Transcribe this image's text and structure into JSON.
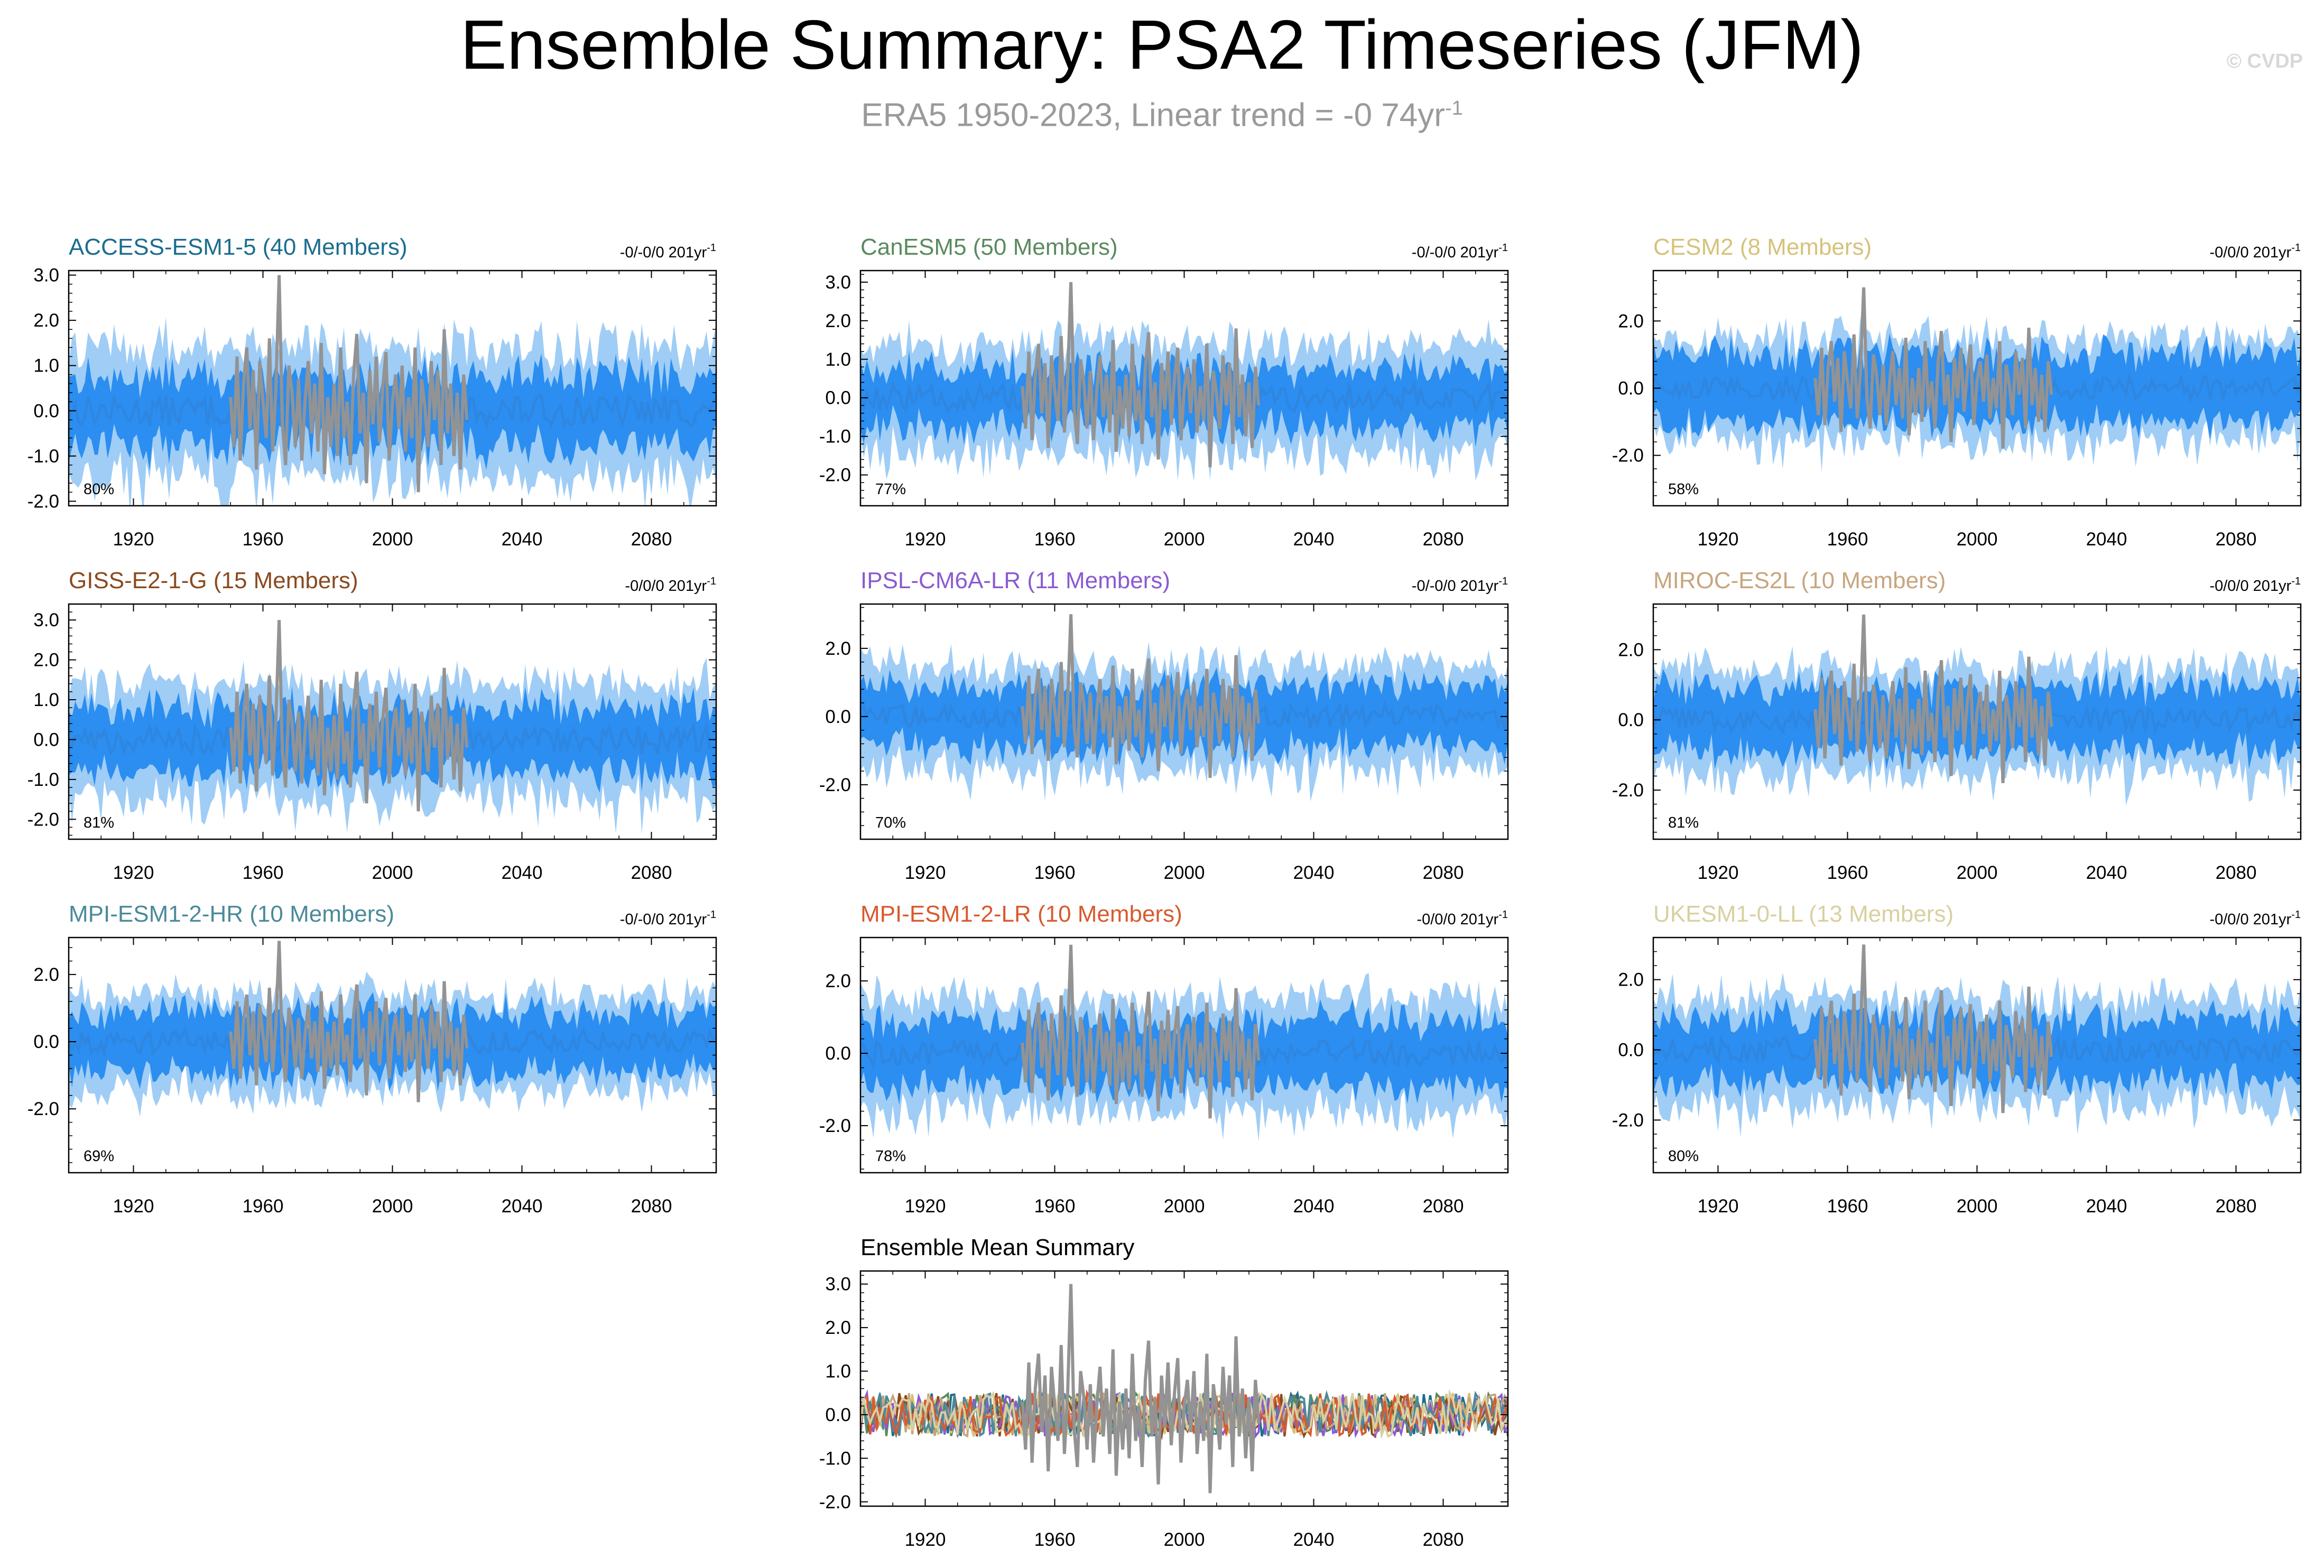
{
  "title": "Ensemble Summary: PSA2 Timeseries (JFM)",
  "subtitle_main": "ERA5 1950-2023, Linear trend = -0 74yr",
  "subtitle_sup": "-1",
  "watermark": "© CVDP",
  "colors": {
    "band_outer": "#9fcdf6",
    "band_inner": "#2b8ef0",
    "median": "#2f86e0",
    "obs": "#939393"
  },
  "chart_data": [
    {
      "type": "area",
      "model": "ACCESS-ESM1-5",
      "members_label": "ACCESS-ESM1-5 (40 Members)",
      "title_color": "#1b6d8e",
      "trend_prefix": "-0/-0/0 201yr",
      "trend_sup": "-1",
      "percent": "80%",
      "ylim": [
        -2.1,
        3.1
      ],
      "yticks": [
        -2,
        -1,
        0,
        1,
        2,
        3
      ],
      "ytick_labels": [
        "-2.0",
        "-1.0",
        "0.0",
        "1.0",
        "2.0",
        "3.0"
      ],
      "xlim": [
        1900,
        2100
      ],
      "xticks": [
        1920,
        1960,
        2000,
        2040,
        2080
      ],
      "outer_halfwidth": 1.4,
      "inner_halfwidth": 0.75
    },
    {
      "type": "area",
      "model": "CanESM5",
      "members_label": "CanESM5 (50 Members)",
      "title_color": "#5a8a5e",
      "trend_prefix": "-0/-0/0 201yr",
      "trend_sup": "-1",
      "percent": "77%",
      "ylim": [
        -2.8,
        3.3
      ],
      "yticks": [
        -2,
        -1,
        0,
        1,
        2,
        3
      ],
      "ytick_labels": [
        "-2.0",
        "-1.0",
        "0.0",
        "1.0",
        "2.0",
        "3.0"
      ],
      "xlim": [
        1900,
        2100
      ],
      "xticks": [
        1920,
        1960,
        2000,
        2040,
        2080
      ],
      "outer_halfwidth": 1.4,
      "inner_halfwidth": 0.75
    },
    {
      "type": "area",
      "model": "CESM2",
      "members_label": "CESM2 (8 Members)",
      "title_color": "#d6c27a",
      "trend_prefix": "-0/0/0 201yr",
      "trend_sup": "-1",
      "percent": "58%",
      "ylim": [
        -3.5,
        3.5
      ],
      "yticks": [
        -2,
        0,
        2
      ],
      "ytick_labels": [
        "-2.0",
        "0.0",
        "2.0"
      ],
      "xlim": [
        1900,
        2100
      ],
      "xticks": [
        1920,
        1960,
        2000,
        2040,
        2080
      ],
      "outer_halfwidth": 1.5,
      "inner_halfwidth": 1.0
    },
    {
      "type": "area",
      "model": "GISS-E2-1-G",
      "members_label": "GISS-E2-1-G (15 Members)",
      "title_color": "#8a4a1e",
      "trend_prefix": "-0/0/0 201yr",
      "trend_sup": "-1",
      "percent": "81%",
      "ylim": [
        -2.5,
        3.4
      ],
      "yticks": [
        -2,
        -1,
        0,
        1,
        2,
        3
      ],
      "ytick_labels": [
        "-2.0",
        "-1.0",
        "0.0",
        "1.0",
        "2.0",
        "3.0"
      ],
      "xlim": [
        1900,
        2100
      ],
      "xticks": [
        1920,
        1960,
        2000,
        2040,
        2080
      ],
      "outer_halfwidth": 1.4,
      "inner_halfwidth": 0.8
    },
    {
      "type": "area",
      "model": "IPSL-CM6A-LR",
      "members_label": "IPSL-CM6A-LR (11 Members)",
      "title_color": "#8a5ad0",
      "trend_prefix": "-0/-0/0 201yr",
      "trend_sup": "-1",
      "percent": "70%",
      "ylim": [
        -3.6,
        3.3
      ],
      "yticks": [
        -2,
        0,
        2
      ],
      "ytick_labels": [
        "-2.0",
        "0.0",
        "2.0"
      ],
      "xlim": [
        1900,
        2100
      ],
      "xticks": [
        1920,
        1960,
        2000,
        2040,
        2080
      ],
      "outer_halfwidth": 1.5,
      "inner_halfwidth": 0.9
    },
    {
      "type": "area",
      "model": "MIROC-ES2L",
      "members_label": "MIROC-ES2L (10 Members)",
      "title_color": "#c8a57e",
      "trend_prefix": "-0/0/0 201yr",
      "trend_sup": "-1",
      "percent": "81%",
      "ylim": [
        -3.4,
        3.3
      ],
      "yticks": [
        -2,
        0,
        2
      ],
      "ytick_labels": [
        "-2.0",
        "0.0",
        "2.0"
      ],
      "xlim": [
        1900,
        2100
      ],
      "xticks": [
        1920,
        1960,
        2000,
        2040,
        2080
      ],
      "outer_halfwidth": 1.5,
      "inner_halfwidth": 0.9
    },
    {
      "type": "area",
      "model": "MPI-ESM1-2-HR",
      "members_label": "MPI-ESM1-2-HR (10 Members)",
      "title_color": "#4a8a9a",
      "trend_prefix": "-0/-0/0 201yr",
      "trend_sup": "-1",
      "percent": "69%",
      "ylim": [
        -3.9,
        3.1
      ],
      "yticks": [
        -2,
        0,
        2
      ],
      "ytick_labels": [
        "-2.0",
        "0.0",
        "2.0"
      ],
      "xlim": [
        1900,
        2100
      ],
      "xticks": [
        1920,
        1960,
        2000,
        2040,
        2080
      ],
      "outer_halfwidth": 1.4,
      "inner_halfwidth": 0.9
    },
    {
      "type": "area",
      "model": "MPI-ESM1-2-LR",
      "members_label": "MPI-ESM1-2-LR (10 Members)",
      "title_color": "#d85a2e",
      "trend_prefix": "-0/0/0 201yr",
      "trend_sup": "-1",
      "percent": "78%",
      "ylim": [
        -3.3,
        3.2
      ],
      "yticks": [
        -2,
        0,
        2
      ],
      "ytick_labels": [
        "-2.0",
        "0.0",
        "2.0"
      ],
      "xlim": [
        1900,
        2100
      ],
      "xticks": [
        1920,
        1960,
        2000,
        2040,
        2080
      ],
      "outer_halfwidth": 1.5,
      "inner_halfwidth": 0.9
    },
    {
      "type": "area",
      "model": "UKESM1-0-LL",
      "members_label": "UKESM1-0-LL (13 Members)",
      "title_color": "#d8d0a0",
      "trend_prefix": "-0/0/0 201yr",
      "trend_sup": "-1",
      "percent": "80%",
      "ylim": [
        -3.5,
        3.2
      ],
      "yticks": [
        -2,
        0,
        2
      ],
      "ytick_labels": [
        "-2.0",
        "0.0",
        "2.0"
      ],
      "xlim": [
        1900,
        2100
      ],
      "xticks": [
        1920,
        1960,
        2000,
        2040,
        2080
      ],
      "outer_halfwidth": 1.5,
      "inner_halfwidth": 0.9
    },
    {
      "type": "line",
      "title": "Ensemble Mean Summary",
      "ylim": [
        -2.1,
        3.3
      ],
      "yticks": [
        -2,
        -1,
        0,
        1,
        2,
        3
      ],
      "ytick_labels": [
        "-2.0",
        "-1.0",
        "0.0",
        "1.0",
        "2.0",
        "3.0"
      ],
      "xlim": [
        1900,
        2100
      ],
      "xticks": [
        1920,
        1960,
        2000,
        2040,
        2080
      ],
      "series": [
        {
          "name": "ACCESS-ESM1-5",
          "color": "#1b6d8e"
        },
        {
          "name": "CanESM5",
          "color": "#5a8a5e"
        },
        {
          "name": "CESM2",
          "color": "#d6c27a"
        },
        {
          "name": "GISS-E2-1-G",
          "color": "#8a4a1e"
        },
        {
          "name": "IPSL-CM6A-LR",
          "color": "#8a5ad0"
        },
        {
          "name": "MIROC-ES2L",
          "color": "#c8a57e"
        },
        {
          "name": "MPI-ESM1-2-HR",
          "color": "#4a8a9a"
        },
        {
          "name": "MPI-ESM1-2-LR",
          "color": "#d85a2e"
        },
        {
          "name": "UKESM1-0-LL",
          "color": "#d8d0a0"
        }
      ]
    }
  ],
  "observations": {
    "dataset": "ERA5",
    "years": [
      1950,
      1951,
      1952,
      1953,
      1954,
      1955,
      1956,
      1957,
      1958,
      1959,
      1960,
      1961,
      1962,
      1963,
      1964,
      1965,
      1966,
      1967,
      1968,
      1969,
      1970,
      1971,
      1972,
      1973,
      1974,
      1975,
      1976,
      1977,
      1978,
      1979,
      1980,
      1981,
      1982,
      1983,
      1984,
      1985,
      1986,
      1987,
      1988,
      1989,
      1990,
      1991,
      1992,
      1993,
      1994,
      1995,
      1996,
      1997,
      1998,
      1999,
      2000,
      2001,
      2002,
      2003,
      2004,
      2005,
      2006,
      2007,
      2008,
      2009,
      2010,
      2011,
      2012,
      2013,
      2014,
      2015,
      2016,
      2017,
      2018,
      2019,
      2020,
      2021,
      2022,
      2023
    ],
    "values": [
      0.3,
      -0.8,
      1.2,
      -1.1,
      0.6,
      1.4,
      -0.4,
      0.9,
      -1.3,
      1.1,
      0.2,
      -0.6,
      1.6,
      -0.9,
      0.5,
      3.0,
      -0.3,
      -1.2,
      1.0,
      0.4,
      -0.8,
      0.7,
      -1.1,
      0.2,
      1.1,
      -0.5,
      0.6,
      -0.9,
      1.5,
      -1.4,
      0.3,
      -0.8,
      0.6,
      -1.0,
      1.4,
      -0.6,
      0.2,
      -1.2,
      0.8,
      1.7,
      -0.5,
      0.4,
      -1.6,
      0.9,
      -0.3,
      1.2,
      -0.7,
      0.5,
      1.3,
      -1.1,
      0.2,
      0.8,
      -0.4,
      1.0,
      -0.9,
      0.3,
      -0.6,
      1.4,
      -1.8,
      0.7,
      0.1,
      -0.8,
      1.1,
      -0.2,
      0.9,
      -1.2,
      1.8,
      -0.5,
      0.6,
      -1.0,
      0.4,
      -1.3,
      0.8,
      -0.2
    ]
  }
}
